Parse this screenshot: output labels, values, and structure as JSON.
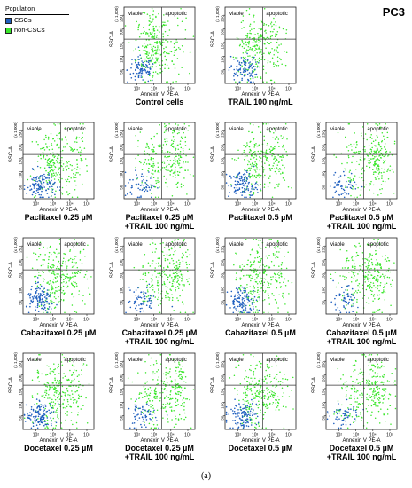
{
  "legend": {
    "title": "Population",
    "items": [
      {
        "label": "CSCs",
        "color": "#1f5fbf"
      },
      {
        "label": "non-CSCs",
        "color": "#39e62a"
      }
    ]
  },
  "cell_line": "PC3",
  "figure_label": "(a)",
  "axis_text": {
    "xlabel": "Annexin V PE-A",
    "ylabel": "SSC-A",
    "ymult": "(x 1,000)",
    "x_ticks": [
      "10²",
      "10³",
      "10⁴",
      "10⁵"
    ],
    "y_ticks": [
      "50",
      "100",
      "150",
      "200",
      "250"
    ],
    "q_left": "viable",
    "q_right": "apoptotic"
  },
  "chart_data": [
    {
      "type": "scatter",
      "caption": [
        "Control cells"
      ],
      "apoptotic_level": 0.18,
      "csc_level": 0.55
    },
    {
      "type": "scatter",
      "caption": [
        "TRAIL 100 ng/mL"
      ],
      "apoptotic_level": 0.22,
      "csc_level": 0.6
    },
    {
      "type": "scatter",
      "caption": [
        "Paclitaxel 0.25 µM"
      ],
      "apoptotic_level": 0.3,
      "csc_level": 0.85
    },
    {
      "type": "scatter",
      "caption": [
        "Paclitaxel 0.25 µM",
        "+TRAIL 100 ng/mL"
      ],
      "apoptotic_level": 0.6,
      "csc_level": 0.2
    },
    {
      "type": "scatter",
      "caption": [
        "Paclitaxel 0.5 µM"
      ],
      "apoptotic_level": 0.35,
      "csc_level": 0.85
    },
    {
      "type": "scatter",
      "caption": [
        "Paclitaxel 0.5 µM",
        "+TRAIL 100 ng/mL"
      ],
      "apoptotic_level": 0.65,
      "csc_level": 0.15
    },
    {
      "type": "scatter",
      "caption": [
        "Cabazitaxel 0.25 µM"
      ],
      "apoptotic_level": 0.32,
      "csc_level": 0.85
    },
    {
      "type": "scatter",
      "caption": [
        "Cabazitaxel 0.25 µM",
        "+TRAIL 100 ng/mL"
      ],
      "apoptotic_level": 0.55,
      "csc_level": 0.25
    },
    {
      "type": "scatter",
      "caption": [
        "Cabazitaxel 0.5 µM"
      ],
      "apoptotic_level": 0.33,
      "csc_level": 0.8
    },
    {
      "type": "scatter",
      "caption": [
        "Cabazitaxel 0.5 µM",
        "+TRAIL 100 ng/mL"
      ],
      "apoptotic_level": 0.6,
      "csc_level": 0.15
    },
    {
      "type": "scatter",
      "caption": [
        "Docetaxel 0.25 µM"
      ],
      "apoptotic_level": 0.3,
      "csc_level": 0.9
    },
    {
      "type": "scatter",
      "caption": [
        "Docetaxel 0.25 µM",
        "+TRAIL 100 ng/mL"
      ],
      "apoptotic_level": 0.6,
      "csc_level": 0.25
    },
    {
      "type": "scatter",
      "caption": [
        "Docetaxel 0.5 µM"
      ],
      "apoptotic_level": 0.32,
      "csc_level": 0.85
    },
    {
      "type": "scatter",
      "caption": [
        "Docetaxel 0.5 µM",
        "+TRAIL 100 ng/mL"
      ],
      "apoptotic_level": 0.6,
      "csc_level": 0.15
    }
  ]
}
